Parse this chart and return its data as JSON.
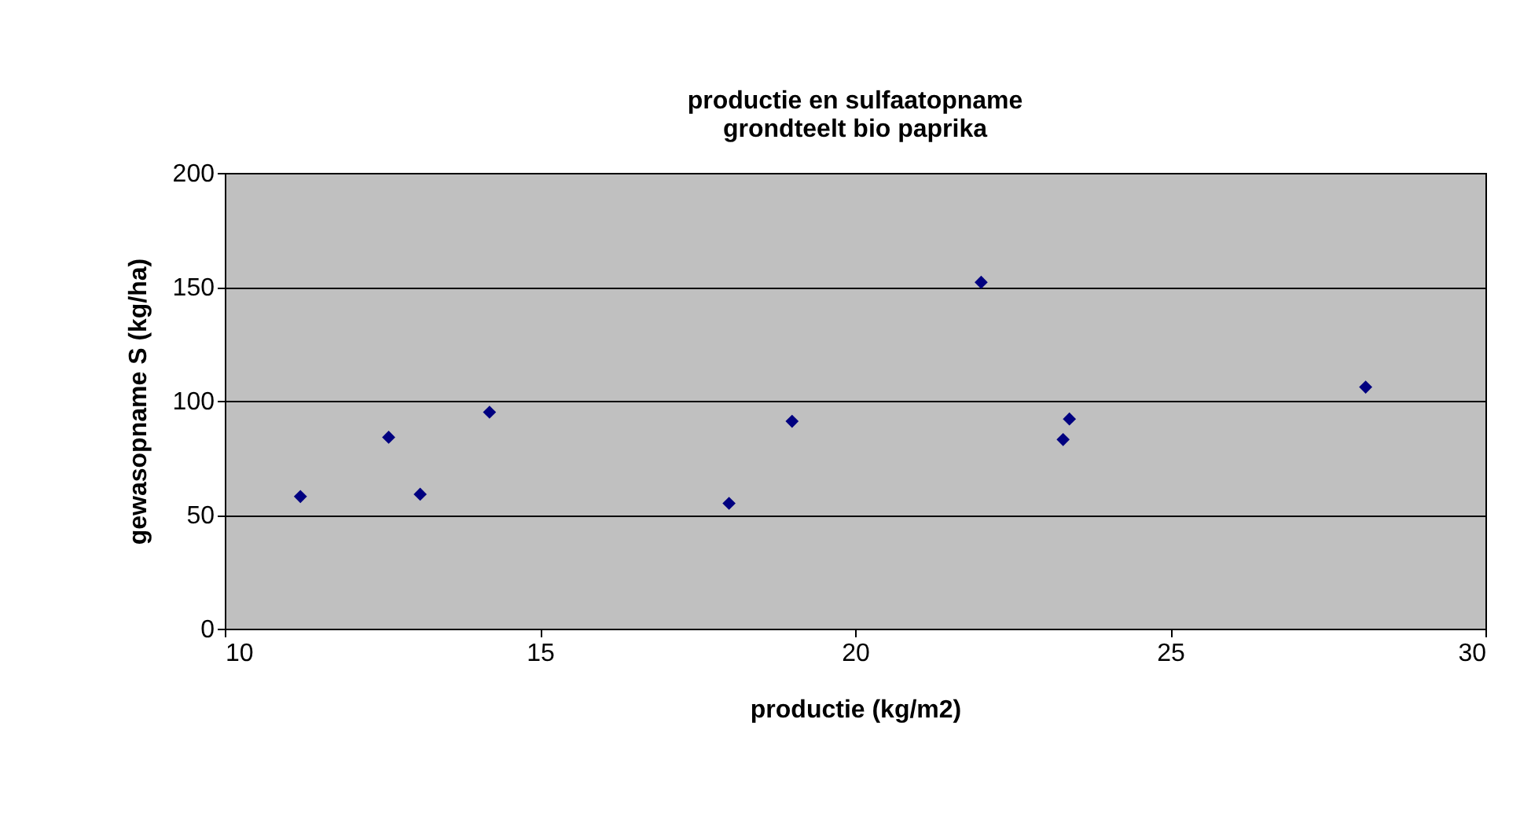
{
  "chart_data": {
    "type": "scatter",
    "title": "productie en sulfaatopname\ngrondteelt bio paprika",
    "xlabel": "productie (kg/m2)",
    "ylabel": "gewasopname S (kg/ha)",
    "x": [
      11.2,
      12.6,
      13.1,
      14.2,
      18.0,
      19.0,
      22.0,
      23.3,
      23.4,
      28.1
    ],
    "series": [
      {
        "color": "#000080",
        "values": [
          58,
          84,
          59,
          95,
          55,
          91,
          152,
          83,
          92,
          106
        ]
      }
    ],
    "xlim": [
      10,
      30
    ],
    "xticks": [
      10,
      15,
      20,
      25,
      30
    ],
    "ylim": [
      0,
      200
    ],
    "yticks": [
      0,
      50,
      100,
      150,
      200
    ],
    "grid": "y",
    "marker": "diamond"
  }
}
